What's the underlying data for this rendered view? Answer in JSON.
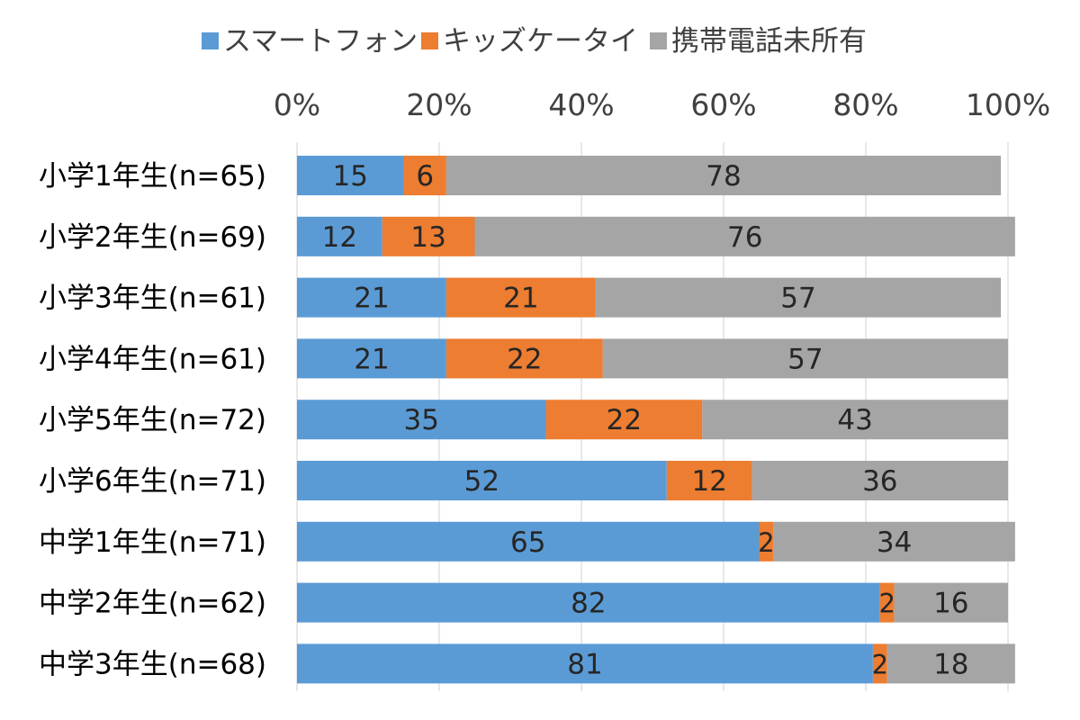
{
  "chart_data": {
    "type": "bar",
    "orientation": "horizontal",
    "stacked": true,
    "percent_stacked": true,
    "title": "",
    "xlabel": "",
    "ylabel": "",
    "xlim": [
      0,
      100
    ],
    "x_ticks": [
      "0%",
      "20%",
      "40%",
      "60%",
      "80%",
      "100%"
    ],
    "grid": true,
    "legend_position": "top",
    "categories": [
      "小学1年生(n=65)",
      "小学2年生(n=69)",
      "小学3年生(n=61)",
      "小学4年生(n=61)",
      "小学5年生(n=72)",
      "小学6年生(n=71)",
      "中学1年生(n=71)",
      "中学2年生(n=62)",
      "中学3年生(n=68)"
    ],
    "series": [
      {
        "name": "スマートフォン",
        "color": "#5b9bd5",
        "values": [
          15,
          12,
          21,
          21,
          35,
          52,
          65,
          82,
          81
        ]
      },
      {
        "name": "キッズケータイ",
        "color": "#ed7d31",
        "values": [
          6,
          13,
          21,
          22,
          22,
          12,
          2,
          2,
          2
        ]
      },
      {
        "name": "携帯電話未所有",
        "color": "#a5a5a5",
        "values": [
          78,
          76,
          57,
          57,
          43,
          36,
          34,
          16,
          18
        ]
      }
    ]
  }
}
